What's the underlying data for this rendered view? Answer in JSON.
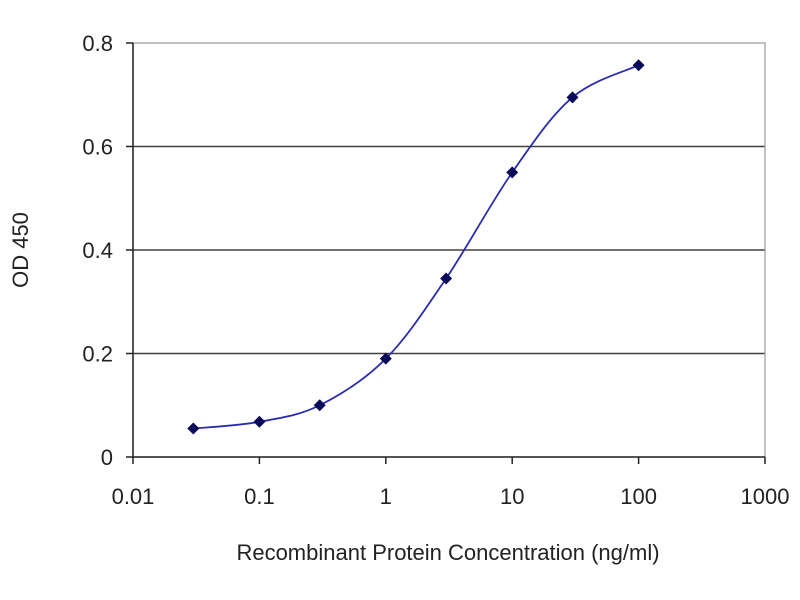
{
  "chart_data": {
    "type": "line",
    "title": "",
    "xlabel": "Recombinant Protein Concentration (ng/ml)",
    "ylabel": "OD 450",
    "x_scale": "log",
    "xlim": [
      0.01,
      1000
    ],
    "ylim": [
      0,
      0.8
    ],
    "x_ticks": [
      0.01,
      0.1,
      1,
      10,
      100,
      1000
    ],
    "x_tick_labels": [
      "0.01",
      "0.1",
      "1",
      "10",
      "100",
      "1000"
    ],
    "y_ticks": [
      0,
      0.2,
      0.4,
      0.6,
      0.8
    ],
    "y_tick_labels": [
      "0",
      "0.2",
      "0.4",
      "0.6",
      "0.8"
    ],
    "grid": "horizontal",
    "legend": "none",
    "colors": {
      "series": "#2b2bb0",
      "marker": "#0a0a5a",
      "grid": "#404040"
    },
    "series": [
      {
        "x": [
          0.03,
          0.1,
          0.3,
          1,
          3,
          10,
          30,
          100
        ],
        "y": [
          0.055,
          0.068,
          0.1,
          0.19,
          0.345,
          0.55,
          0.695,
          0.757
        ]
      }
    ]
  }
}
